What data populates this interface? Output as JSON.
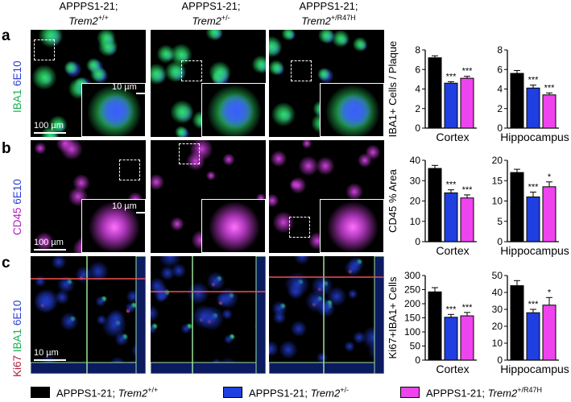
{
  "columns": [
    {
      "prefix": "APPPS1-21;",
      "gene": "Trem2",
      "genotype": "+/+"
    },
    {
      "prefix": "APPPS1-21;",
      "gene": "Trem2",
      "genotype": "+/-"
    },
    {
      "prefix": "APPPS1-21;",
      "gene": "Trem2",
      "genotype": "+/R47H"
    }
  ],
  "rows": [
    {
      "letter": "a",
      "stain1": "IBA1",
      "stain2": "6E10",
      "scale_main": "100 µm",
      "scale_inset": "10 µm"
    },
    {
      "letter": "b",
      "stain1": "CD45",
      "stain2": "6E10",
      "scale_main": "100 µm",
      "scale_inset": "10 µm"
    },
    {
      "letter": "c",
      "stain0": "Ki67",
      "stain1": "IBA1",
      "stain2": "6E10",
      "scale_main": "10 µm"
    }
  ],
  "colors": {
    "wt": "#000000",
    "het": "#1f3fe0",
    "r47h": "#ee44ee",
    "green": "#2ee06a",
    "blue": "#3a5aff",
    "magenta": "#d040e0",
    "red": "#e04040"
  },
  "chart_data": [
    {
      "type": "bar",
      "panel": "a",
      "region": "Cortex",
      "ylabel": "IBA1+ Cells / Plaque",
      "ylim": [
        0,
        8
      ],
      "yticks": [
        0,
        2,
        4,
        6,
        8
      ],
      "values": [
        7.2,
        4.6,
        5.1
      ],
      "errors": [
        0.2,
        0.15,
        0.2
      ],
      "sig": [
        "",
        "***",
        "***"
      ]
    },
    {
      "type": "bar",
      "panel": "a",
      "region": "Hippocampus",
      "ylabel": "",
      "ylim": [
        0,
        8
      ],
      "yticks": [
        0,
        2,
        4,
        6,
        8
      ],
      "values": [
        5.6,
        4.1,
        3.4
      ],
      "errors": [
        0.3,
        0.3,
        0.2
      ],
      "sig": [
        "",
        "***",
        "***"
      ]
    },
    {
      "type": "bar",
      "panel": "b",
      "region": "Cortex",
      "ylabel": "CD45 % Area",
      "ylim": [
        0,
        40
      ],
      "yticks": [
        0,
        10,
        20,
        30,
        40
      ],
      "values": [
        36,
        24,
        21.5
      ],
      "errors": [
        1.5,
        1.5,
        1.5
      ],
      "sig": [
        "",
        "***",
        "***"
      ]
    },
    {
      "type": "bar",
      "panel": "b",
      "region": "Hippocampus",
      "ylabel": "",
      "ylim": [
        0,
        20
      ],
      "yticks": [
        0,
        5,
        10,
        15,
        20
      ],
      "values": [
        17,
        11,
        13.5
      ],
      "errors": [
        0.8,
        1.2,
        1.2
      ],
      "sig": [
        "",
        "***",
        "*"
      ]
    },
    {
      "type": "bar",
      "panel": "c",
      "region": "Cortex",
      "ylabel": "Ki67+IBA1+ Cells",
      "ylim": [
        0,
        300
      ],
      "yticks": [
        0,
        50,
        100,
        150,
        200,
        250,
        300
      ],
      "values": [
        242,
        152,
        157
      ],
      "errors": [
        15,
        10,
        12
      ],
      "sig": [
        "",
        "***",
        "***"
      ]
    },
    {
      "type": "bar",
      "panel": "c",
      "region": "Hippocampus",
      "ylabel": "",
      "ylim": [
        0,
        50
      ],
      "yticks": [
        0,
        10,
        20,
        30,
        40,
        50
      ],
      "values": [
        44,
        28,
        32.5
      ],
      "errors": [
        3,
        2,
        4.5
      ],
      "sig": [
        "",
        "***",
        "*"
      ]
    }
  ],
  "legend": [
    {
      "prefix": "APPPS1-21; ",
      "gene": "Trem2",
      "genotype": "+/+",
      "color": "#000000"
    },
    {
      "prefix": "APPPS1-21; ",
      "gene": "Trem2",
      "genotype": "+/-",
      "color": "#1f3fe0"
    },
    {
      "prefix": "APPPS1-21; ",
      "gene": "Trem2",
      "genotype": "+/R47H",
      "color": "#ee44ee"
    }
  ]
}
